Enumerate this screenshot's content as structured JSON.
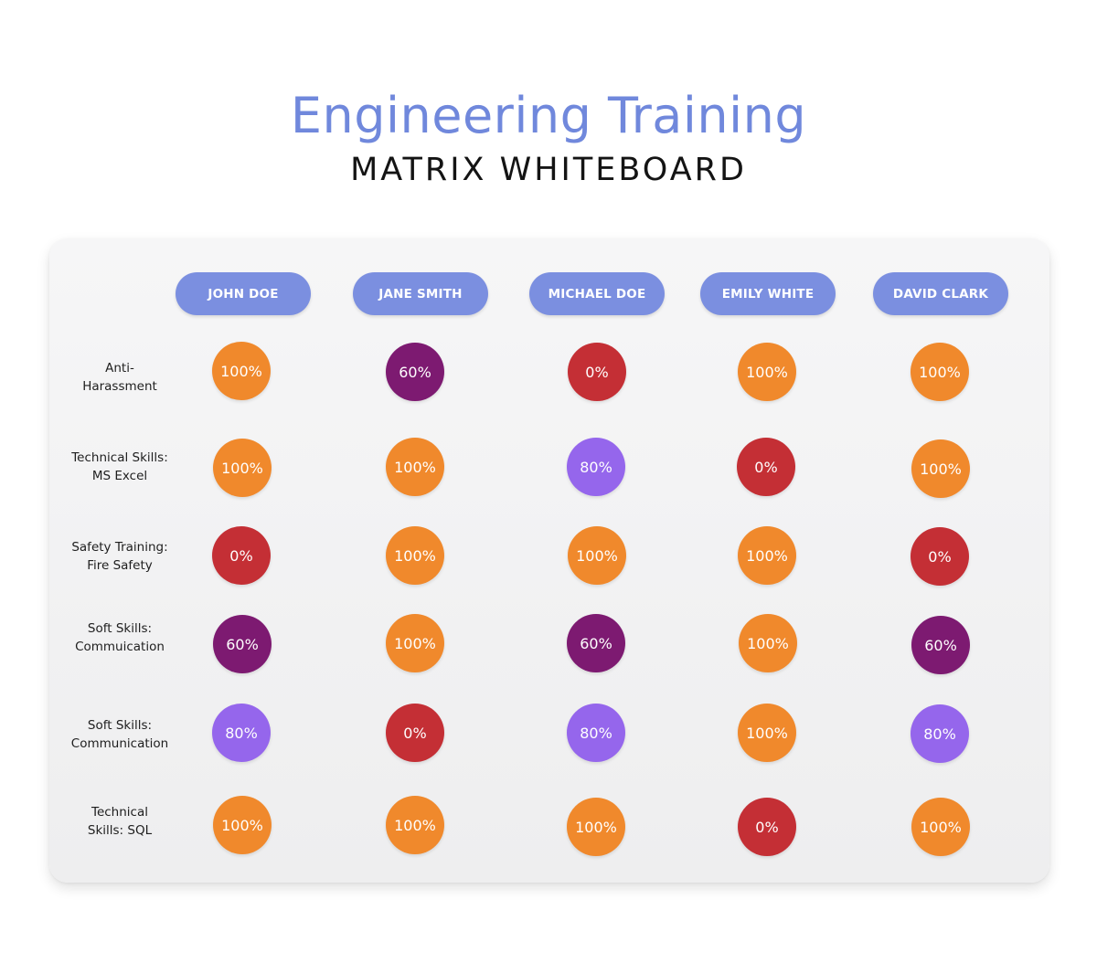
{
  "title": "Engineering Training",
  "subtitle": "MATRIX WHITEBOARD",
  "colors": {
    "title": "#7088dc",
    "header_pill": "#7b8fe0",
    "pct_100": "#f0892c",
    "pct_80": "#9566ec",
    "pct_60": "#7d1a71",
    "pct_0": "#c42f35"
  },
  "columns": [
    "JOHN DOE",
    "JANE SMITH",
    "MICHAEL DOE",
    "EMILY WHITE",
    "DAVID CLARK"
  ],
  "rows": [
    {
      "label": "Anti-\nHarassment",
      "values": [
        "100%",
        "60%",
        "0%",
        "100%",
        "100%"
      ]
    },
    {
      "label": "Technical Skills:\nMS Excel",
      "values": [
        "100%",
        "100%",
        "80%",
        "0%",
        "100%"
      ]
    },
    {
      "label": "Safety Training:\nFire Safety",
      "values": [
        "0%",
        "100%",
        "100%",
        "100%",
        "0%"
      ]
    },
    {
      "label": "Soft Skills:\nCommuication",
      "values": [
        "60%",
        "100%",
        "60%",
        "100%",
        "60%"
      ]
    },
    {
      "label": "Soft Skills:\nCommunication",
      "values": [
        "80%",
        "0%",
        "80%",
        "100%",
        "80%"
      ]
    },
    {
      "label": "Technical\nSkills: SQL",
      "values": [
        "100%",
        "100%",
        "100%",
        "0%",
        "100%"
      ]
    }
  ]
}
